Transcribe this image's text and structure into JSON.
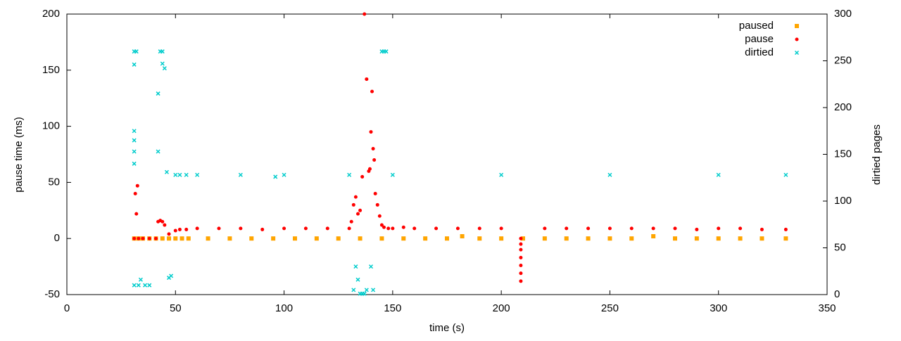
{
  "chart_data": {
    "type": "scatter",
    "x_label": "time (s)",
    "y_label": "pause time (ms)",
    "y2_label": "dirtied pages",
    "xlim": [
      0,
      350
    ],
    "xticks": [
      0,
      50,
      100,
      150,
      200,
      250,
      300,
      350
    ],
    "ylim": [
      -50,
      200
    ],
    "yticks": [
      -50,
      0,
      50,
      100,
      150,
      200
    ],
    "y2lim": [
      0,
      300
    ],
    "y2ticks": [
      0,
      50,
      100,
      150,
      200,
      250,
      300
    ],
    "legend": "top-right",
    "grid": false,
    "series": [
      {
        "name": "paused",
        "color": "#ffa500",
        "marker": "square",
        "x": [
          31,
          33,
          35,
          38,
          41,
          44,
          47,
          50,
          53,
          56,
          65,
          75,
          85,
          95,
          105,
          115,
          125,
          135,
          145,
          155,
          165,
          175,
          182,
          190,
          200,
          210,
          220,
          230,
          240,
          250,
          260,
          270,
          280,
          290,
          300,
          310,
          320,
          331
        ],
        "values": [
          0,
          0,
          0,
          0,
          0,
          0,
          0,
          0,
          0,
          0,
          0,
          0,
          0,
          0,
          0,
          0,
          0,
          0,
          0,
          0,
          0,
          0,
          2,
          0,
          0,
          0,
          0,
          0,
          0,
          0,
          0,
          2,
          0,
          0,
          0,
          0,
          0,
          0
        ]
      },
      {
        "name": "pause",
        "color": "#ff0000",
        "marker": "circle",
        "x": [
          31,
          31.5,
          32,
          32.5,
          33,
          35,
          38,
          41,
          42,
          43,
          44,
          45,
          47,
          50,
          52,
          55,
          60,
          70,
          80,
          90,
          100,
          110,
          120,
          130,
          131,
          132,
          133,
          134,
          135,
          136,
          137,
          138,
          139,
          139.5,
          140,
          140.5,
          141,
          141.5,
          142,
          143,
          144,
          145,
          146,
          148,
          150,
          155,
          160,
          170,
          180,
          190,
          200,
          209,
          209,
          209,
          209,
          209,
          209,
          209,
          220,
          230,
          240,
          250,
          260,
          270,
          280,
          290,
          300,
          310,
          320,
          331
        ],
        "values": [
          0,
          40,
          22,
          47,
          0,
          0,
          0,
          0,
          15,
          16,
          15,
          12,
          4,
          7,
          8,
          8,
          9,
          9,
          9,
          8,
          9,
          9,
          9,
          9,
          15,
          30,
          37,
          22,
          25,
          55,
          200,
          142,
          60,
          62,
          95,
          131,
          80,
          70,
          40,
          30,
          20,
          12,
          10,
          9,
          9,
          10,
          9,
          9,
          9,
          9,
          9,
          0,
          -5,
          -10,
          -17,
          -24,
          -31,
          -38,
          9,
          9,
          9,
          9,
          9,
          9,
          9,
          8,
          9,
          9,
          8,
          8
        ]
      },
      {
        "name": "dirtied",
        "color": "#00cccc",
        "marker": "cross",
        "axis": "y2",
        "x": [
          31,
          31,
          31,
          31,
          31,
          31,
          31,
          32,
          33,
          34,
          36,
          38,
          42,
          42,
          43,
          44,
          44,
          45,
          46,
          47,
          48,
          50,
          52,
          55,
          60,
          80,
          96,
          100,
          130,
          132,
          133,
          134,
          135,
          136,
          137,
          138,
          140,
          141,
          145,
          146,
          147,
          150,
          200,
          250,
          300,
          331
        ],
        "values": [
          260,
          246,
          175,
          165,
          153,
          140,
          10,
          260,
          10,
          16,
          10,
          10,
          215,
          153,
          260,
          260,
          247,
          242,
          131,
          18,
          20,
          128,
          128,
          128,
          128,
          128,
          126,
          128,
          128,
          5,
          30,
          16,
          1,
          1,
          1,
          5,
          30,
          5,
          260,
          260,
          260,
          128,
          128,
          128,
          128,
          128
        ]
      }
    ]
  }
}
